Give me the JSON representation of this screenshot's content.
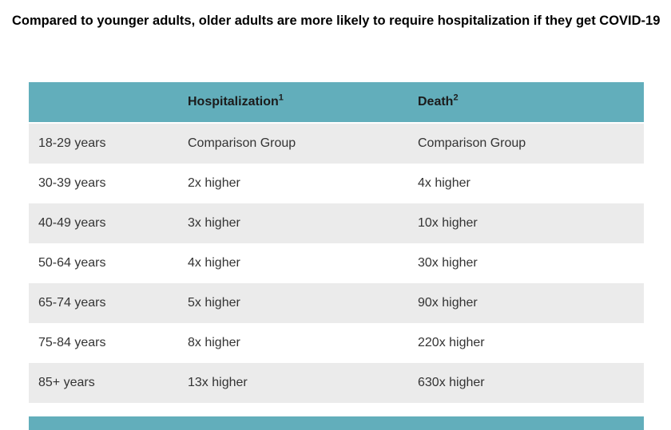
{
  "page": {
    "title": "Compared to younger adults, older adults are more likely to require hospitalization if they get COVID-19"
  },
  "colors": {
    "header_teal": "#62aebb",
    "row_gray": "#ebebeb",
    "row_white": "#ffffff",
    "body_text": "#333333",
    "header_text": "#1b1b1b"
  },
  "table": {
    "columns": [
      {
        "label": "",
        "superscript": ""
      },
      {
        "label": "Hospitalization",
        "superscript": "1"
      },
      {
        "label": "Death",
        "superscript": "2"
      }
    ],
    "rows": [
      {
        "age": "18-29 years",
        "hospitalization": "Comparison Group",
        "death": "Comparison Group"
      },
      {
        "age": "30-39 years",
        "hospitalization": "2x higher",
        "death": "4x higher"
      },
      {
        "age": "40-49 years",
        "hospitalization": "3x higher",
        "death": "10x higher"
      },
      {
        "age": "50-64 years",
        "hospitalization": "4x higher",
        "death": "30x higher"
      },
      {
        "age": "65-74 years",
        "hospitalization": "5x higher",
        "death": "90x higher"
      },
      {
        "age": "75-84 years",
        "hospitalization": "8x higher",
        "death": "220x higher"
      },
      {
        "age": "85+ years",
        "hospitalization": "13x higher",
        "death": "630x higher"
      }
    ]
  }
}
